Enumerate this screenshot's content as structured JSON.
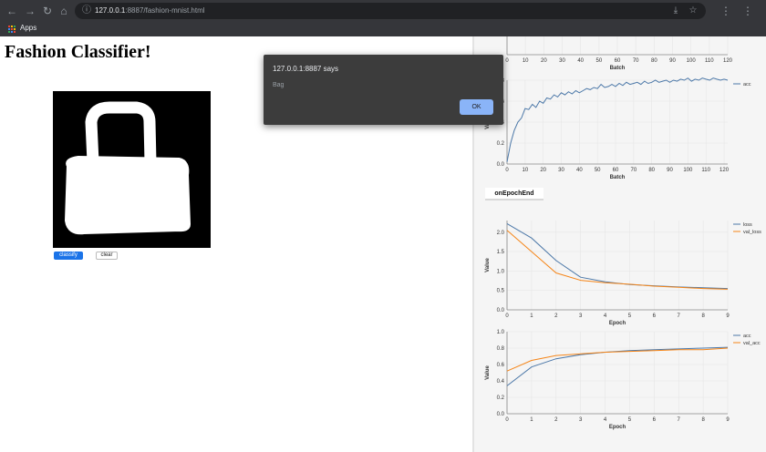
{
  "browser": {
    "url_host": "127.0.0.1",
    "url_path": ":8887/fashion-mnist.html",
    "bookmarks_apps": "Apps",
    "apps_colors": [
      "#ea4335",
      "#fbbc04",
      "#34a853",
      "#4285f4",
      "#ea4335",
      "#fbbc04",
      "#34a853",
      "#4285f4",
      "#ea4335"
    ]
  },
  "page": {
    "title": "Fashion Classifier!",
    "classify_label": "classify",
    "clear_label": "clear",
    "drawing_subject": "bag"
  },
  "alert": {
    "origin": "127.0.0.1:8887 says",
    "message": "Bag",
    "ok_label": "OK"
  },
  "visor": {
    "tab_label": "onEpochEnd"
  },
  "colors": {
    "series_blue": "#4c78a8",
    "series_orange": "#f58518",
    "button_blue": "#1a73e8",
    "alert_button": "#8ab4f8"
  },
  "chart_data": [
    {
      "type": "line",
      "xlabel": "Batch",
      "ylabel": "",
      "xlim": [
        0,
        120
      ],
      "xticks": [
        0,
        10,
        20,
        30,
        40,
        50,
        60,
        70,
        80,
        90,
        100,
        110,
        120
      ],
      "series": [],
      "note": "lower edge only visible"
    },
    {
      "type": "line",
      "xlabel": "Batch",
      "ylabel": "Value",
      "xlim": [
        0,
        122
      ],
      "ylim": [
        0,
        0.8
      ],
      "xticks": [
        0,
        10,
        20,
        30,
        40,
        50,
        60,
        70,
        80,
        90,
        100,
        110,
        120
      ],
      "yticks": [
        "0.0",
        "0.2",
        "0.4",
        "0.6",
        "0.8"
      ],
      "legend": "top-right",
      "series": [
        {
          "name": "acc",
          "x": [
            0,
            2,
            4,
            6,
            8,
            10,
            12,
            14,
            16,
            18,
            20,
            22,
            24,
            26,
            28,
            30,
            32,
            34,
            36,
            38,
            40,
            42,
            44,
            46,
            48,
            50,
            52,
            54,
            56,
            58,
            60,
            62,
            64,
            66,
            68,
            70,
            72,
            74,
            76,
            78,
            80,
            82,
            84,
            86,
            88,
            90,
            92,
            94,
            96,
            98,
            100,
            102,
            104,
            106,
            108,
            110,
            112,
            114,
            116,
            118,
            120,
            122
          ],
          "y": [
            0.02,
            0.2,
            0.32,
            0.4,
            0.44,
            0.53,
            0.52,
            0.57,
            0.54,
            0.6,
            0.58,
            0.63,
            0.62,
            0.66,
            0.64,
            0.68,
            0.66,
            0.69,
            0.67,
            0.7,
            0.68,
            0.7,
            0.72,
            0.71,
            0.73,
            0.72,
            0.76,
            0.73,
            0.74,
            0.76,
            0.74,
            0.77,
            0.75,
            0.78,
            0.76,
            0.77,
            0.78,
            0.76,
            0.79,
            0.77,
            0.78,
            0.8,
            0.78,
            0.79,
            0.8,
            0.78,
            0.8,
            0.79,
            0.81,
            0.8,
            0.82,
            0.79,
            0.81,
            0.8,
            0.82,
            0.81,
            0.8,
            0.82,
            0.81,
            0.8,
            0.81,
            0.8
          ]
        }
      ]
    },
    {
      "type": "line",
      "xlabel": "Epoch",
      "ylabel": "Value",
      "xlim": [
        0,
        9
      ],
      "ylim": [
        0,
        2.3
      ],
      "xticks": [
        0,
        1,
        2,
        3,
        4,
        5,
        6,
        7,
        8,
        9
      ],
      "yticks": [
        "0.0",
        "0.5",
        "1.0",
        "1.5",
        "2.0"
      ],
      "legend": "top-right",
      "series": [
        {
          "name": "loss",
          "x": [
            0,
            1,
            2,
            3,
            4,
            5,
            6,
            7,
            8,
            9
          ],
          "y": [
            2.22,
            1.85,
            1.27,
            0.84,
            0.72,
            0.65,
            0.62,
            0.59,
            0.57,
            0.55
          ]
        },
        {
          "name": "val_loss",
          "x": [
            0,
            1,
            2,
            3,
            4,
            5,
            6,
            7,
            8,
            9
          ],
          "y": [
            2.05,
            1.5,
            0.95,
            0.76,
            0.7,
            0.66,
            0.61,
            0.58,
            0.55,
            0.53
          ]
        }
      ]
    },
    {
      "type": "line",
      "xlabel": "Epoch",
      "ylabel": "Value",
      "xlim": [
        0,
        9
      ],
      "ylim": [
        0,
        1.0
      ],
      "xticks": [
        0,
        1,
        2,
        3,
        4,
        5,
        6,
        7,
        8,
        9
      ],
      "yticks": [
        "0.0",
        "0.2",
        "0.4",
        "0.6",
        "0.8",
        "1.0"
      ],
      "legend": "top-right",
      "series": [
        {
          "name": "acc",
          "x": [
            0,
            1,
            2,
            3,
            4,
            5,
            6,
            7,
            8,
            9
          ],
          "y": [
            0.34,
            0.57,
            0.67,
            0.72,
            0.75,
            0.77,
            0.78,
            0.79,
            0.8,
            0.81
          ]
        },
        {
          "name": "val_acc",
          "x": [
            0,
            1,
            2,
            3,
            4,
            5,
            6,
            7,
            8,
            9
          ],
          "y": [
            0.52,
            0.65,
            0.71,
            0.73,
            0.75,
            0.76,
            0.77,
            0.78,
            0.78,
            0.8
          ]
        }
      ]
    }
  ]
}
